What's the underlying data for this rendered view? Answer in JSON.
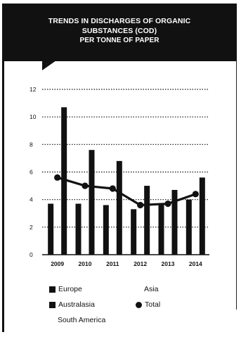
{
  "title_lines": [
    "TRENDS IN DISCHARGES OF ORGANIC",
    "SUBSTANCES (COD)",
    "PER TONNE OF PAPER"
  ],
  "chart_data": {
    "type": "bar",
    "title": "TRENDS IN DISCHARGES OF ORGANIC SUBSTANCES (COD) PER TONNE OF PAPER",
    "xlabel": "",
    "ylabel": "",
    "ylim": [
      0,
      12
    ],
    "yticks": [
      0,
      2,
      4,
      6,
      8,
      10,
      12
    ],
    "categories": [
      "2009",
      "2010",
      "2011",
      "2012",
      "2013",
      "2014"
    ],
    "grid": "horizontal dotted",
    "series": [
      {
        "name": "Europe",
        "type": "bar",
        "color": "#111111",
        "values": [
          3.7,
          3.7,
          3.6,
          3.3,
          3.6,
          4.0
        ]
      },
      {
        "name": "Australasia",
        "type": "bar",
        "color": "#111111",
        "values": [
          10.7,
          7.6,
          6.8,
          5.0,
          4.7,
          5.6
        ]
      },
      {
        "name": "Total",
        "type": "line",
        "color": "#111111",
        "values": [
          5.6,
          5.0,
          4.8,
          3.6,
          3.7,
          4.4
        ]
      }
    ],
    "legend": {
      "placement": "bottom",
      "items": [
        {
          "label": "Europe",
          "marker": "square"
        },
        {
          "label": "Asia",
          "marker": "none"
        },
        {
          "label": "Australasia",
          "marker": "square"
        },
        {
          "label": "Total",
          "marker": "dot"
        },
        {
          "label": "South America",
          "marker": "none"
        }
      ]
    }
  }
}
